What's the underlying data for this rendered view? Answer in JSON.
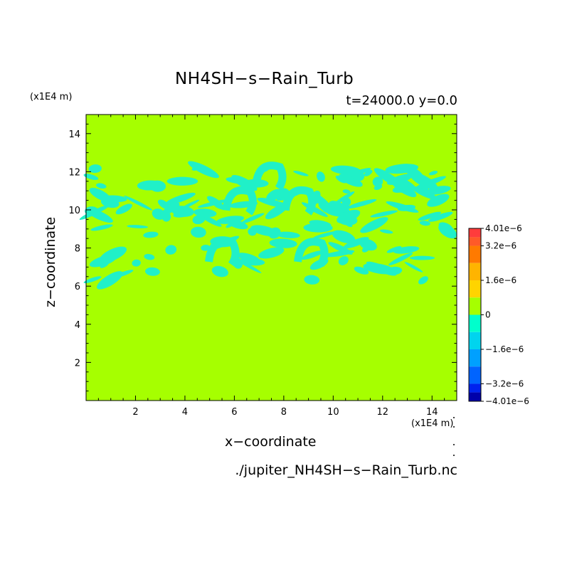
{
  "chart_data": {
    "type": "heatmap",
    "title": "NH4SH−s−Rain_Turb",
    "subtitle": "t=24000.0 y=0.0",
    "xlabel": "x−coordinate",
    "ylabel": "z−coordinate",
    "x_unit": "(x1E4 m)",
    "y_unit": "(x1E4 m)",
    "xlim": [
      0,
      15
    ],
    "ylim": [
      0,
      15
    ],
    "xticks": [
      2,
      4,
      6,
      8,
      10,
      12,
      14
    ],
    "yticks": [
      2,
      4,
      6,
      8,
      10,
      12,
      14
    ],
    "background_value": 0,
    "perturbed_layer_z": [
      6,
      12.5
    ],
    "perturbed_value": -1e-06,
    "colorbar": {
      "min": -4.01e-06,
      "max": 4.01e-06,
      "labels": [
        "4.01e−6",
        "3.2e−6",
        "1.6e−6",
        "0",
        "−1.6e−6",
        "−3.2e−6",
        "−4.01e−6"
      ],
      "label_values": [
        4.01e-06,
        3.2e-06,
        1.6e-06,
        0,
        -1.6e-06,
        -3.2e-06,
        -4.01e-06
      ],
      "bands": [
        {
          "from": 3.6e-06,
          "to": 4.01e-06,
          "color": "#ff3c3c"
        },
        {
          "from": 3.2e-06,
          "to": 3.6e-06,
          "color": "#ff5a28"
        },
        {
          "from": 2.4e-06,
          "to": 3.2e-06,
          "color": "#ff7a00"
        },
        {
          "from": 1.6e-06,
          "to": 2.4e-06,
          "color": "#ffb400"
        },
        {
          "from": 8e-07,
          "to": 1.6e-06,
          "color": "#ffd400"
        },
        {
          "from": 0,
          "to": 8e-07,
          "color": "#a6ff00"
        },
        {
          "from": -8e-07,
          "to": 0,
          "color": "#00ffcc"
        },
        {
          "from": -1.6e-06,
          "to": -8e-07,
          "color": "#00d4ee"
        },
        {
          "from": -2.4e-06,
          "to": -1.6e-06,
          "color": "#00a0ff"
        },
        {
          "from": -3.2e-06,
          "to": -2.4e-06,
          "color": "#0064ff"
        },
        {
          "from": -3.6e-06,
          "to": -3.2e-06,
          "color": "#0022ee"
        },
        {
          "from": -4.01e-06,
          "to": -3.6e-06,
          "color": "#0000aa"
        }
      ]
    },
    "colors": {
      "background": "#a6ff00",
      "perturbation": "#20f0c8"
    }
  },
  "source_file": "./jupiter_NH4SH−s−Rain_Turb.nc"
}
